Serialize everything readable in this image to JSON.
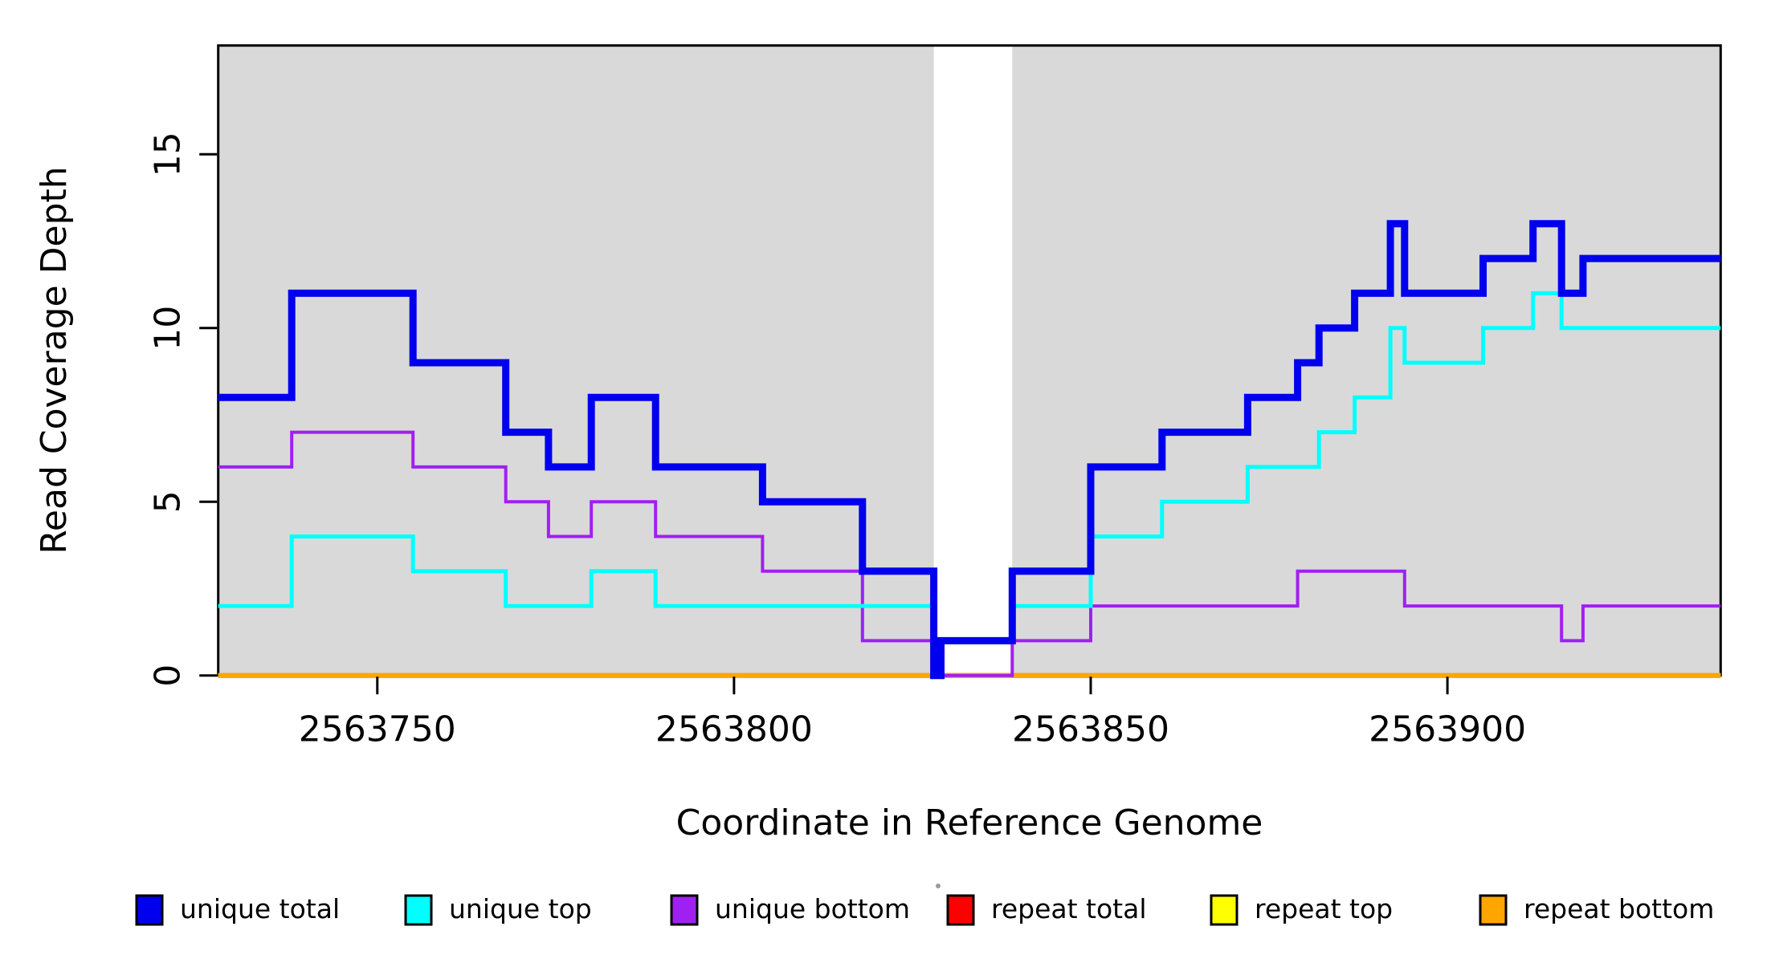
{
  "chart_data": {
    "type": "line",
    "subtype": "step-after",
    "title": "",
    "xlabel": "Coordinate in Reference Genome",
    "ylabel": "Read Coverage Depth",
    "x_domain": [
      2563727.7,
      2563938.3
    ],
    "y_domain": [
      0,
      18.13
    ],
    "grid": "off",
    "plot_background_color": "#D9D9D9",
    "highlight_region": {
      "x_start": 2563828,
      "x_end": 2563839,
      "fill": "#FFFFFF"
    },
    "x_ticks": [
      {
        "value": 2563750,
        "label": "2563750"
      },
      {
        "value": 2563800,
        "label": "2563800"
      },
      {
        "value": 2563850,
        "label": "2563850"
      },
      {
        "value": 2563900,
        "label": "2563900"
      }
    ],
    "y_ticks": [
      {
        "value": 0,
        "label": "0"
      },
      {
        "value": 5,
        "label": "5"
      },
      {
        "value": 10,
        "label": "10"
      },
      {
        "value": 15,
        "label": "15"
      }
    ],
    "series": [
      {
        "id": "repeat-total",
        "name": "repeat total",
        "color": "#FF0000",
        "line_width": 6,
        "points": [
          [
            2563727.7,
            0
          ]
        ]
      },
      {
        "id": "repeat-top",
        "name": "repeat top",
        "color": "#FFFF00",
        "line_width": 6,
        "points": [
          [
            2563727.7,
            0
          ]
        ]
      },
      {
        "id": "repeat-bottom",
        "name": "repeat bottom",
        "color": "#FFA500",
        "line_width": 6,
        "points": [
          [
            2563727.7,
            0
          ]
        ]
      },
      {
        "id": "unique-bottom",
        "name": "unique bottom",
        "color": "#A020F0",
        "line_width": 4,
        "points": [
          [
            2563727.7,
            6
          ],
          [
            2563738,
            7
          ],
          [
            2563755,
            6
          ],
          [
            2563768,
            5
          ],
          [
            2563774,
            4
          ],
          [
            2563780,
            5
          ],
          [
            2563789,
            4
          ],
          [
            2563804,
            3
          ],
          [
            2563818,
            1
          ],
          [
            2563828,
            0
          ],
          [
            2563839,
            1
          ],
          [
            2563850,
            2
          ],
          [
            2563879,
            3
          ],
          [
            2563894,
            2
          ],
          [
            2563916,
            1
          ],
          [
            2563919,
            2
          ]
        ]
      },
      {
        "id": "unique-top",
        "name": "unique top",
        "color": "#00FFFF",
        "line_width": 5,
        "points": [
          [
            2563727.7,
            2
          ],
          [
            2563738,
            4
          ],
          [
            2563755,
            3
          ],
          [
            2563768,
            2
          ],
          [
            2563780,
            3
          ],
          [
            2563789,
            2
          ],
          [
            2563828,
            0
          ],
          [
            2563829,
            1
          ],
          [
            2563839,
            2
          ],
          [
            2563850,
            4
          ],
          [
            2563860,
            5
          ],
          [
            2563872,
            6
          ],
          [
            2563882,
            7
          ],
          [
            2563887,
            8
          ],
          [
            2563892,
            10
          ],
          [
            2563894,
            9
          ],
          [
            2563905,
            10
          ],
          [
            2563912,
            11
          ],
          [
            2563916,
            10
          ]
        ]
      },
      {
        "id": "unique-total",
        "name": "unique total",
        "color": "#0000EE",
        "line_width": 9,
        "points": [
          [
            2563727.7,
            8
          ],
          [
            2563738,
            11
          ],
          [
            2563755,
            9
          ],
          [
            2563768,
            7
          ],
          [
            2563774,
            6
          ],
          [
            2563780,
            8
          ],
          [
            2563789,
            6
          ],
          [
            2563804,
            5
          ],
          [
            2563818,
            3
          ],
          [
            2563828,
            0
          ],
          [
            2563829,
            1
          ],
          [
            2563839,
            3
          ],
          [
            2563850,
            6
          ],
          [
            2563860,
            7
          ],
          [
            2563872,
            8
          ],
          [
            2563879,
            9
          ],
          [
            2563882,
            10
          ],
          [
            2563887,
            11
          ],
          [
            2563892,
            13
          ],
          [
            2563894,
            11
          ],
          [
            2563905,
            12
          ],
          [
            2563912,
            13
          ],
          [
            2563916,
            11
          ],
          [
            2563919,
            12
          ]
        ]
      }
    ],
    "legend": {
      "position": "bottom",
      "items": [
        {
          "label": "unique total",
          "color": "#0000EE"
        },
        {
          "label": "unique top",
          "color": "#00FFFF"
        },
        {
          "label": "unique bottom",
          "color": "#A020F0"
        },
        {
          "label": "repeat total",
          "color": "#FF0000"
        },
        {
          "label": "repeat top",
          "color": "#FFFF00"
        },
        {
          "label": "repeat bottom",
          "color": "#FFA500"
        }
      ]
    }
  }
}
